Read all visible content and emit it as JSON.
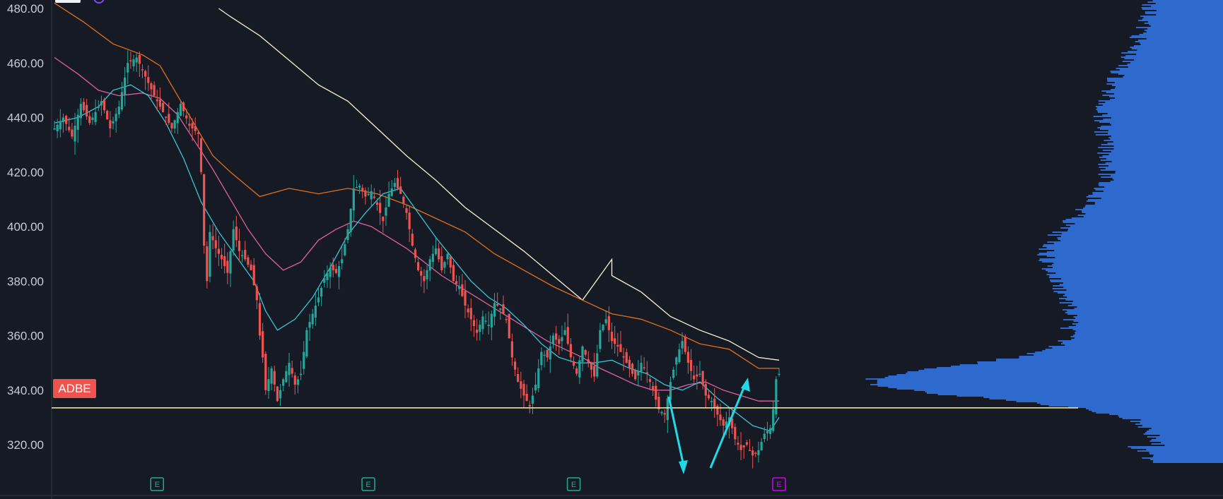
{
  "chart_data": {
    "type": "candlestick",
    "symbol_badge": "ADBE",
    "y_ticks": [
      "480.00",
      "460.00",
      "440.00",
      "420.00",
      "400.00",
      "380.00",
      "360.00",
      "340.00",
      "320.00"
    ],
    "ylim": [
      308,
      483
    ],
    "horizontal_line": 333.5,
    "earnings_markers": [
      {
        "bar": 35,
        "label": "E",
        "color": "#22ab94"
      },
      {
        "bar": 107,
        "label": "E",
        "color": "#22ab94"
      },
      {
        "bar": 177,
        "label": "E",
        "color": "#22ab94"
      },
      {
        "bar": 247,
        "label": "E",
        "color": "#d500f9"
      }
    ],
    "close_series": [
      [
        0,
        436
      ],
      [
        3,
        440
      ],
      [
        6,
        433
      ],
      [
        9,
        445
      ],
      [
        12,
        438
      ],
      [
        16,
        446
      ],
      [
        19,
        436
      ],
      [
        22,
        444
      ],
      [
        25,
        460
      ],
      [
        28,
        462
      ],
      [
        31,
        455
      ],
      [
        34,
        448
      ],
      [
        37,
        442
      ],
      [
        40,
        436
      ],
      [
        43,
        445
      ],
      [
        46,
        437
      ],
      [
        49,
        434
      ],
      [
        50,
        420
      ],
      [
        51,
        393
      ],
      [
        52,
        380
      ],
      [
        53,
        398
      ],
      [
        55,
        392
      ],
      [
        57,
        388
      ],
      [
        59,
        383
      ],
      [
        61,
        399
      ],
      [
        63,
        391
      ],
      [
        65,
        388
      ],
      [
        67,
        384
      ],
      [
        69,
        373
      ],
      [
        70,
        360
      ],
      [
        71,
        352
      ],
      [
        72,
        340
      ],
      [
        74,
        348
      ],
      [
        76,
        336
      ],
      [
        78,
        344
      ],
      [
        80,
        350
      ],
      [
        82,
        342
      ],
      [
        84,
        346
      ],
      [
        86,
        362
      ],
      [
        88,
        368
      ],
      [
        90,
        374
      ],
      [
        92,
        381
      ],
      [
        94,
        385
      ],
      [
        96,
        383
      ],
      [
        98,
        388
      ],
      [
        100,
        399
      ],
      [
        102,
        414
      ],
      [
        104,
        415
      ],
      [
        106,
        411
      ],
      [
        108,
        413
      ],
      [
        110,
        408
      ],
      [
        112,
        402
      ],
      [
        114,
        412
      ],
      [
        116,
        416
      ],
      [
        118,
        412
      ],
      [
        120,
        405
      ],
      [
        122,
        393
      ],
      [
        124,
        384
      ],
      [
        126,
        380
      ],
      [
        128,
        388
      ],
      [
        130,
        392
      ],
      [
        132,
        384
      ],
      [
        134,
        390
      ],
      [
        136,
        380
      ],
      [
        138,
        378
      ],
      [
        140,
        371
      ],
      [
        142,
        366
      ],
      [
        144,
        361
      ],
      [
        146,
        367
      ],
      [
        148,
        364
      ],
      [
        150,
        372
      ],
      [
        152,
        370
      ],
      [
        154,
        366
      ],
      [
        156,
        352
      ],
      [
        158,
        343
      ],
      [
        160,
        338
      ],
      [
        162,
        334
      ],
      [
        164,
        342
      ],
      [
        166,
        354
      ],
      [
        168,
        352
      ],
      [
        170,
        360
      ],
      [
        172,
        357
      ],
      [
        174,
        362
      ],
      [
        176,
        352
      ],
      [
        178,
        346
      ],
      [
        180,
        356
      ],
      [
        182,
        350
      ],
      [
        184,
        345
      ],
      [
        186,
        362
      ],
      [
        188,
        366
      ],
      [
        190,
        358
      ],
      [
        192,
        356
      ],
      [
        194,
        352
      ],
      [
        196,
        348
      ],
      [
        198,
        344
      ],
      [
        200,
        350
      ],
      [
        202,
        346
      ],
      [
        204,
        340
      ],
      [
        206,
        333
      ],
      [
        208,
        331
      ],
      [
        210,
        343
      ],
      [
        212,
        352
      ],
      [
        214,
        358
      ],
      [
        216,
        350
      ],
      [
        218,
        344
      ],
      [
        220,
        346
      ],
      [
        222,
        338
      ],
      [
        224,
        336
      ],
      [
        226,
        331
      ],
      [
        228,
        327
      ],
      [
        230,
        330
      ],
      [
        232,
        322
      ],
      [
        234,
        318
      ],
      [
        236,
        320
      ],
      [
        238,
        316
      ],
      [
        240,
        318
      ],
      [
        242,
        324
      ],
      [
        244,
        326
      ],
      [
        245,
        333
      ],
      [
        246,
        344
      ],
      [
        247,
        346
      ]
    ],
    "moving_averages": [
      {
        "color": "#f9f5d0",
        "points": [
          [
            56,
            480
          ],
          [
            60,
            477
          ],
          [
            70,
            470
          ],
          [
            80,
            461
          ],
          [
            90,
            452
          ],
          [
            100,
            446
          ],
          [
            110,
            436
          ],
          [
            120,
            426
          ],
          [
            130,
            417
          ],
          [
            140,
            407
          ],
          [
            150,
            399
          ],
          [
            160,
            391
          ],
          [
            170,
            382
          ],
          [
            180,
            373
          ],
          [
            190,
            388
          ],
          [
            190,
            382
          ],
          [
            200,
            376
          ],
          [
            210,
            367
          ],
          [
            220,
            362
          ],
          [
            230,
            358
          ],
          [
            240,
            352
          ],
          [
            247,
            351
          ]
        ]
      },
      {
        "color": "#e2701c",
        "points": [
          [
            0,
            482
          ],
          [
            10,
            475
          ],
          [
            20,
            467
          ],
          [
            30,
            463
          ],
          [
            36,
            459
          ],
          [
            42,
            448
          ],
          [
            48,
            437
          ],
          [
            54,
            426
          ],
          [
            60,
            420
          ],
          [
            70,
            411
          ],
          [
            80,
            414
          ],
          [
            90,
            412
          ],
          [
            100,
            414
          ],
          [
            110,
            412
          ],
          [
            120,
            408
          ],
          [
            130,
            403
          ],
          [
            140,
            398
          ],
          [
            150,
            390
          ],
          [
            160,
            384
          ],
          [
            170,
            378
          ],
          [
            180,
            373
          ],
          [
            190,
            368
          ],
          [
            200,
            366
          ],
          [
            210,
            362
          ],
          [
            220,
            357
          ],
          [
            230,
            355
          ],
          [
            240,
            348
          ],
          [
            247,
            348
          ]
        ]
      },
      {
        "color": "#e0609e",
        "points": [
          [
            0,
            462
          ],
          [
            8,
            456
          ],
          [
            15,
            450
          ],
          [
            22,
            448
          ],
          [
            30,
            449
          ],
          [
            36,
            447
          ],
          [
            42,
            441
          ],
          [
            48,
            431
          ],
          [
            54,
            421
          ],
          [
            60,
            410
          ],
          [
            66,
            399
          ],
          [
            72,
            390
          ],
          [
            78,
            384
          ],
          [
            84,
            387
          ],
          [
            90,
            395
          ],
          [
            96,
            399
          ],
          [
            102,
            402
          ],
          [
            108,
            400
          ],
          [
            114,
            396
          ],
          [
            120,
            392
          ],
          [
            126,
            387
          ],
          [
            132,
            382
          ],
          [
            138,
            378
          ],
          [
            144,
            374
          ],
          [
            150,
            370
          ],
          [
            156,
            366
          ],
          [
            162,
            362
          ],
          [
            168,
            358
          ],
          [
            174,
            355
          ],
          [
            180,
            352
          ],
          [
            186,
            348
          ],
          [
            192,
            345
          ],
          [
            198,
            342
          ],
          [
            204,
            340
          ],
          [
            210,
            340
          ],
          [
            216,
            342
          ],
          [
            222,
            343
          ],
          [
            228,
            340
          ],
          [
            234,
            338
          ],
          [
            240,
            336
          ],
          [
            247,
            336
          ]
        ]
      },
      {
        "color": "#38c5d6",
        "points": [
          [
            0,
            438
          ],
          [
            8,
            440
          ],
          [
            15,
            444
          ],
          [
            20,
            450
          ],
          [
            26,
            452
          ],
          [
            32,
            448
          ],
          [
            38,
            438
          ],
          [
            44,
            425
          ],
          [
            50,
            409
          ],
          [
            56,
            398
          ],
          [
            62,
            389
          ],
          [
            68,
            380
          ],
          [
            72,
            369
          ],
          [
            76,
            362
          ],
          [
            82,
            366
          ],
          [
            88,
            374
          ],
          [
            94,
            385
          ],
          [
            100,
            397
          ],
          [
            106,
            405
          ],
          [
            112,
            412
          ],
          [
            118,
            414
          ],
          [
            124,
            405
          ],
          [
            130,
            396
          ],
          [
            136,
            388
          ],
          [
            142,
            380
          ],
          [
            148,
            374
          ],
          [
            154,
            370
          ],
          [
            160,
            364
          ],
          [
            166,
            357
          ],
          [
            172,
            352
          ],
          [
            178,
            350
          ],
          [
            184,
            350
          ],
          [
            190,
            351
          ],
          [
            196,
            348
          ],
          [
            202,
            346
          ],
          [
            208,
            342
          ],
          [
            214,
            340
          ],
          [
            220,
            343
          ],
          [
            226,
            337
          ],
          [
            232,
            332
          ],
          [
            238,
            327
          ],
          [
            244,
            325
          ],
          [
            247,
            330
          ]
        ]
      }
    ],
    "volume_profile_poc": 343
  }
}
